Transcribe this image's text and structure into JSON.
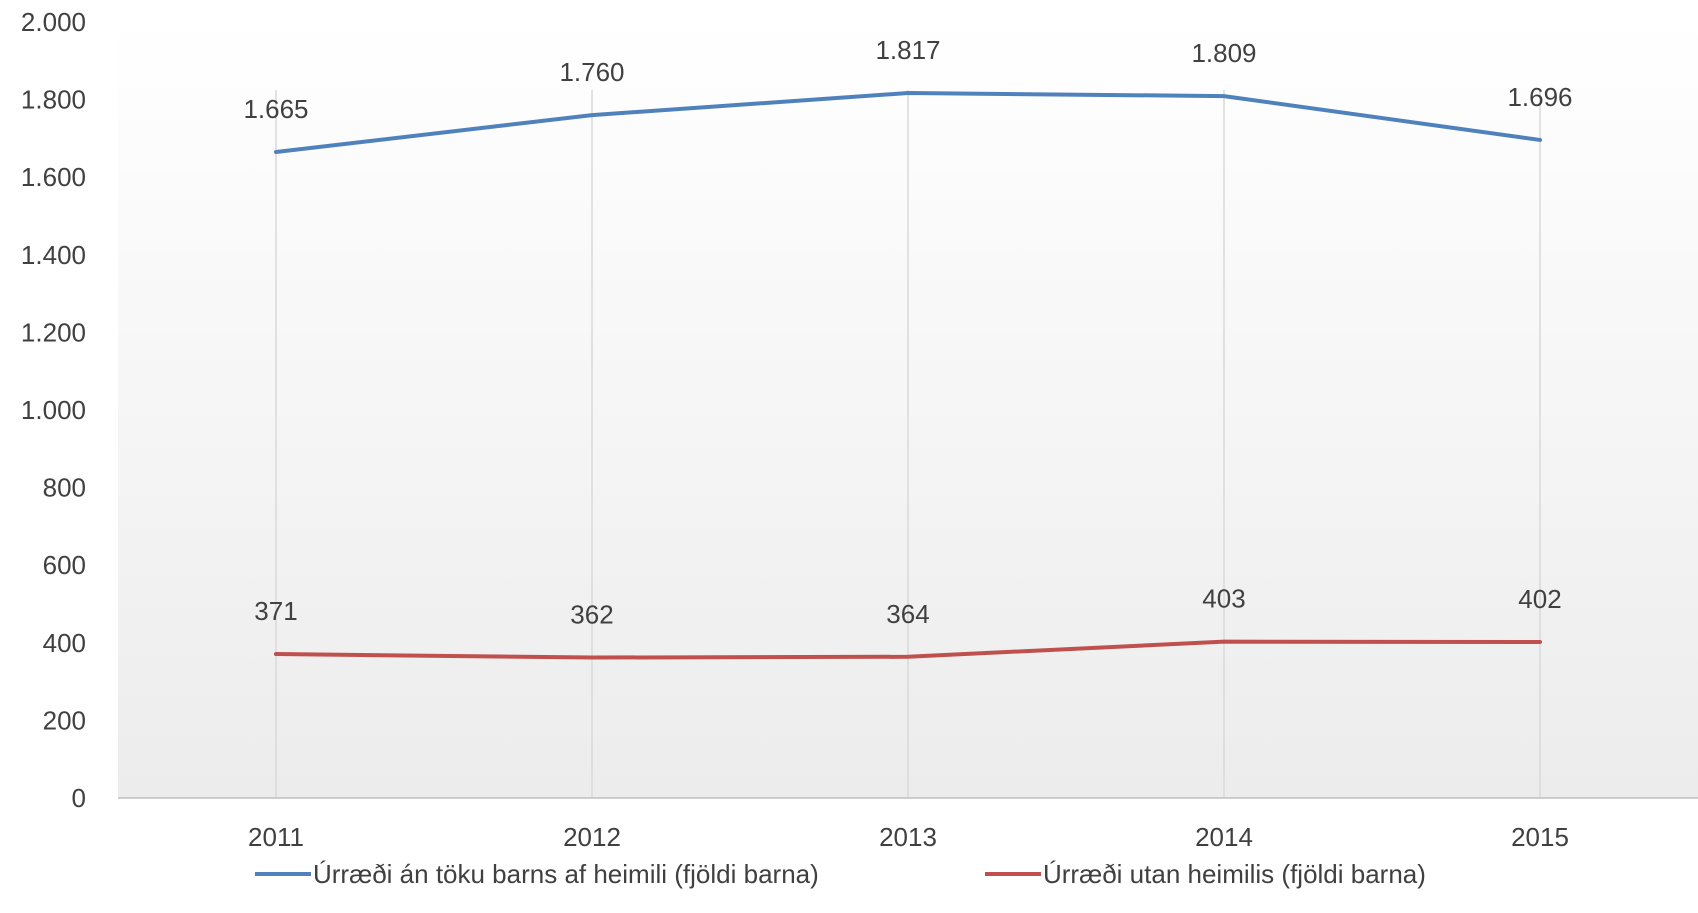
{
  "chart_data": {
    "type": "line",
    "title": "",
    "xlabel": "",
    "ylabel": "",
    "categories": [
      "2011",
      "2012",
      "2013",
      "2014",
      "2015"
    ],
    "ylim": [
      0,
      2000
    ],
    "yticks": [
      0,
      200,
      400,
      600,
      800,
      1000,
      1200,
      1400,
      1600,
      1800,
      2000
    ],
    "ytick_labels": [
      "0",
      "200",
      "400",
      "600",
      "800",
      "1.000",
      "1.200",
      "1.400",
      "1.600",
      "1.800",
      "2.000"
    ],
    "grid": "vertical",
    "legend_position": "bottom",
    "series": [
      {
        "name": "Úrræði án töku barns af heimili (fjöldi barna)",
        "values": [
          1665,
          1760,
          1817,
          1809,
          1696
        ],
        "labels": [
          "1.665",
          "1.760",
          "1.817",
          "1.809",
          "1.696"
        ],
        "color": "#4F81BD"
      },
      {
        "name": "Úrræði utan heimilis (fjöldi barna)",
        "values": [
          371,
          362,
          364,
          403,
          402
        ],
        "labels": [
          "371",
          "362",
          "364",
          "403",
          "402"
        ],
        "color": "#C0504D"
      }
    ]
  }
}
